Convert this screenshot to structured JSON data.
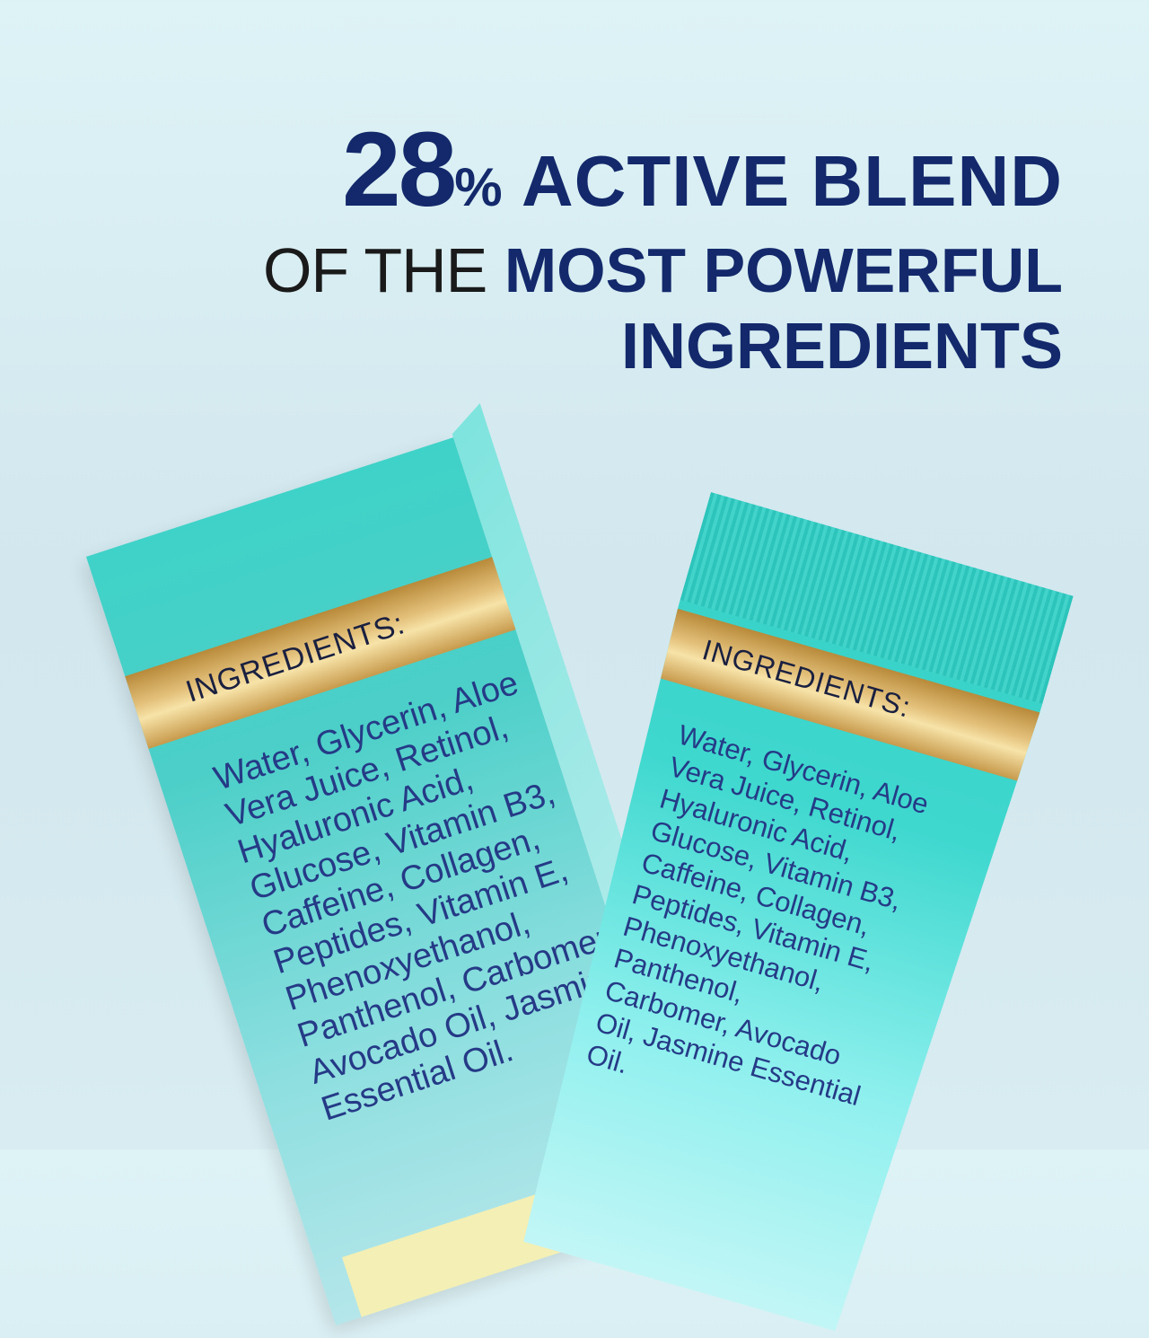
{
  "headline": {
    "percent_number": "28",
    "percent_sign": "%",
    "line1_rest": "ACTIVE BLEND",
    "line2_thin": "OF THE",
    "line2_bold": "MOST POWERFUL",
    "line3": "INGREDIENTS"
  },
  "colors": {
    "navy": "#13296b",
    "teal": "#3fd2c8",
    "gold": "#d9b465"
  },
  "box": {
    "label": "INGREDIENTS:",
    "ingredients": "Water, Glycerin, Aloe\nVera Juice, Retinol,\nHyaluronic Acid,\nGlucose, Vitamin B3,\nCaffeine, Collagen,\nPeptides, Vitamin E,\nPhenoxyethanol,\nPanthenol, Carbomer,\nAvocado Oil, Jasmine\nEssential Oil."
  },
  "tube": {
    "label": "INGREDIENTS:",
    "ingredients": "Water, Glycerin, Aloe\nVera Juice, Retinol,\nHyaluronic Acid,\nGlucose, Vitamin B3,\nCaffeine, Collagen,\nPeptides, Vitamin E,\nPhenoxyethanol,\nPanthenol,\nCarbomer, Avocado\nOil, Jasmine Essential\nOil."
  }
}
